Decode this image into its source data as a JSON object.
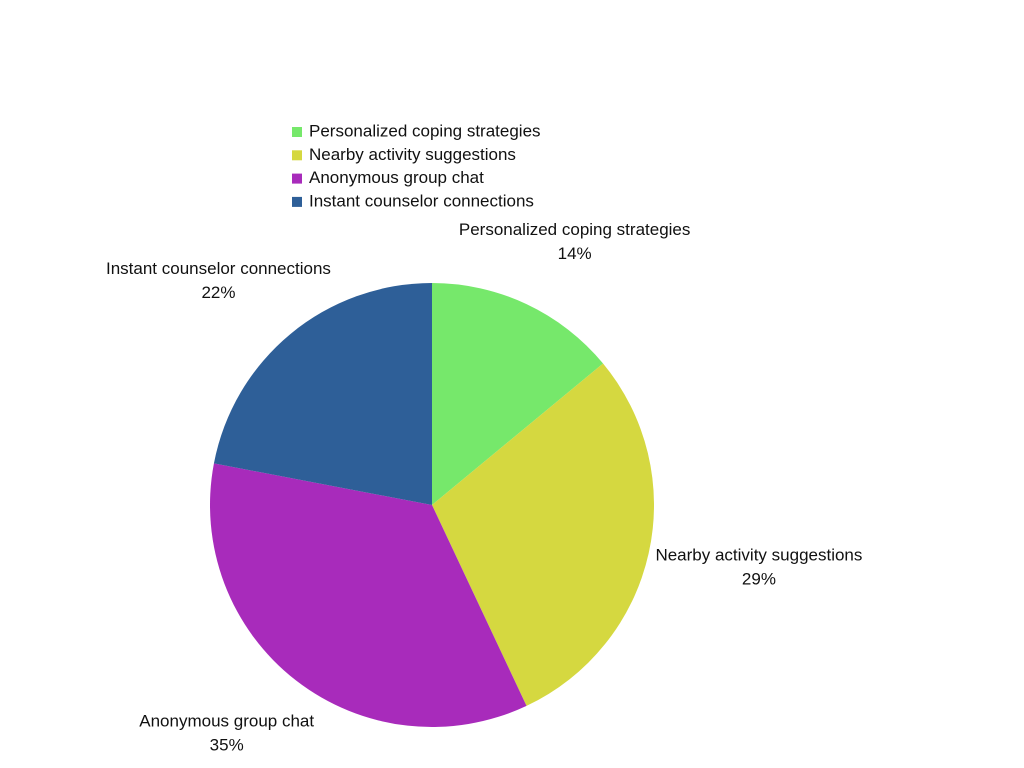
{
  "chart_data": {
    "type": "pie",
    "categories": [
      "Personalized coping strategies",
      "Nearby activity suggestions",
      "Anonymous group chat",
      "Instant counselor connections"
    ],
    "values": [
      14,
      29,
      35,
      22
    ],
    "value_labels": [
      "14%",
      "29%",
      "35%",
      "22%"
    ],
    "colors": [
      "#76e86b",
      "#d5d840",
      "#a82bbb",
      "#2e5f98"
    ],
    "legend": "top"
  }
}
